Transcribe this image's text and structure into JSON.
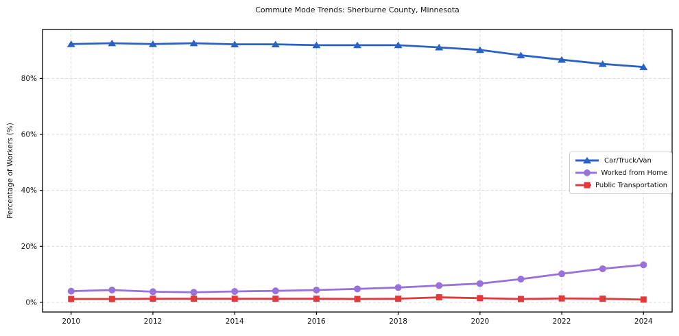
{
  "chart_data": {
    "type": "line",
    "title": "Commute Mode Trends: Sherburne County, Minnesota",
    "xlabel": "",
    "ylabel": "Percentage of Workers (%)",
    "x": [
      2010,
      2011,
      2012,
      2013,
      2014,
      2015,
      2016,
      2017,
      2018,
      2019,
      2020,
      2021,
      2022,
      2023,
      2024
    ],
    "series": [
      {
        "name": "Car/Truck/Van",
        "color": "#2a62c4",
        "marker": "triangle",
        "values": [
          92.3,
          92.6,
          92.3,
          92.6,
          92.2,
          92.2,
          91.9,
          91.9,
          91.9,
          91.1,
          90.2,
          88.3,
          86.7,
          85.2,
          84.1
        ]
      },
      {
        "name": "Worked from Home",
        "color": "#9871da",
        "marker": "circle",
        "values": [
          4.0,
          4.4,
          3.8,
          3.6,
          3.9,
          4.1,
          4.4,
          4.8,
          5.3,
          6.0,
          6.7,
          8.3,
          10.2,
          12.0,
          13.4
        ]
      },
      {
        "name": "Public Transportation",
        "color": "#e23a3a",
        "marker": "square",
        "values": [
          1.2,
          1.2,
          1.3,
          1.3,
          1.3,
          1.3,
          1.3,
          1.2,
          1.3,
          1.8,
          1.5,
          1.2,
          1.4,
          1.3,
          1.0
        ]
      }
    ],
    "xticks": [
      2010,
      2012,
      2014,
      2016,
      2018,
      2020,
      2022,
      2024
    ],
    "yticks": [
      0,
      20,
      40,
      60,
      80
    ],
    "ytick_suffix": "%",
    "xlim": [
      2009.3,
      2024.7
    ],
    "ylim": [
      -3.45,
      97.5
    ],
    "grid": true,
    "grid_color": "#d9d9d9",
    "axis_color": "#000000",
    "tick_label_color": "#111111",
    "legend_position": "center right",
    "background": "#ffffff"
  }
}
